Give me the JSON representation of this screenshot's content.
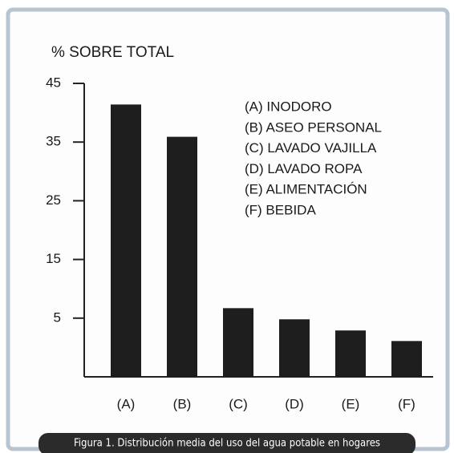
{
  "chart_data": {
    "type": "bar",
    "ylabel": "% SOBRE TOTAL",
    "categories": [
      "(A)",
      "(B)",
      "(C)",
      "(D)",
      "(E)",
      "(F)"
    ],
    "values": [
      41.4,
      35.9,
      6.7,
      4.8,
      2.9,
      1.1
    ],
    "color": "#1e1e1e",
    "ylim": [
      -5,
      45
    ],
    "yticks": [
      5,
      15,
      25,
      35,
      45
    ],
    "annotations": [
      "(A) INODORO",
      "(B) ASEO PERSONAL",
      "(C) LAVADO VAJILLA",
      "(D) LAVADO ROPA",
      "(E) ALIMENTACIÓN",
      "(F) BEBIDA"
    ],
    "caption": "Figura 1. Distribución media del uso del agua potable en hogares"
  }
}
